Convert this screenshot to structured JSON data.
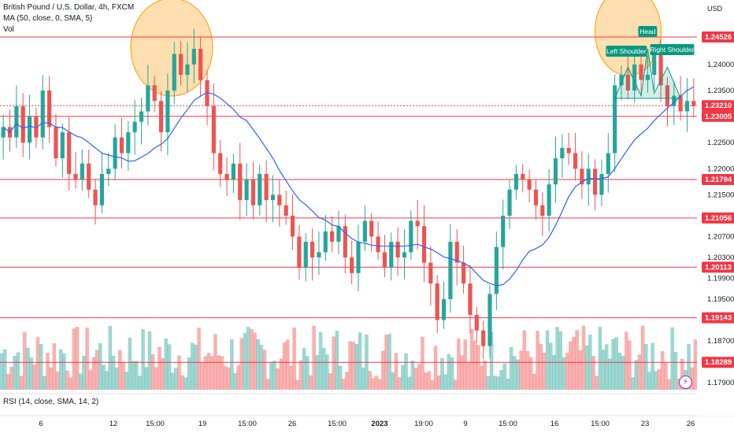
{
  "legend": {
    "symbol": "British Pound / U.S. Dollar, 4h, FXCM",
    "ma": "MA (50, close, 0, SMA, 5)",
    "vol": "Vol",
    "rsi": "RSI (14, close, SMA, 14, 2)"
  },
  "currency": "USD",
  "flash_icon": "lightning-icon",
  "colors": {
    "up": "#26a69a",
    "down": "#ef5350",
    "ma": "#2962ff",
    "level": "#f23645",
    "pattern": "#089981",
    "highlight": "#ffb74d"
  },
  "chart_data": {
    "type": "candlestick",
    "title": "British Pound / U.S. Dollar, 4h, FXCM",
    "ylabel": "USD",
    "ylim": [
      1.179,
      1.2506
    ],
    "y_ticks": [
      "1.24000",
      "1.23500",
      "1.22500",
      "1.22000",
      "1.21500",
      "1.20700",
      "1.20300",
      "1.19900",
      "1.19500",
      "1.18700",
      "1.17900"
    ],
    "x_ticks": [
      "6",
      "12",
      "15:00",
      "19",
      "15:00",
      "26",
      "15:00",
      "2023",
      "19:00",
      "9",
      "15:00",
      "16",
      "15:00",
      "23",
      "26"
    ],
    "horizontal_levels": [
      1.24526,
      1.23005,
      1.21794,
      1.21056,
      1.20113,
      1.19143,
      1.18289
    ],
    "last_price": 1.2321,
    "price_labels": [
      "1.24526",
      "1.23210",
      "1.23005",
      "1.21794",
      "1.21056",
      "1.20113",
      "1.19143",
      "1.18289"
    ],
    "closes": [
      1.228,
      1.226,
      1.232,
      1.225,
      1.23,
      1.226,
      1.235,
      1.228,
      1.222,
      1.227,
      1.219,
      1.218,
      1.221,
      1.216,
      1.213,
      1.219,
      1.22,
      1.226,
      1.223,
      1.227,
      1.229,
      1.231,
      1.236,
      1.233,
      1.227,
      1.235,
      1.242,
      1.238,
      1.24,
      1.243,
      1.237,
      1.232,
      1.223,
      1.219,
      1.218,
      1.221,
      1.214,
      1.218,
      1.213,
      1.219,
      1.214,
      1.215,
      1.213,
      1.211,
      1.207,
      1.201,
      1.206,
      1.203,
      1.204,
      1.208,
      1.206,
      1.209,
      1.203,
      1.2,
      1.206,
      1.21,
      1.207,
      1.204,
      1.201,
      1.206,
      1.203,
      1.204,
      1.21,
      1.209,
      1.202,
      1.198,
      1.191,
      1.195,
      1.206,
      1.202,
      1.198,
      1.192,
      1.189,
      1.186,
      1.196,
      1.205,
      1.211,
      1.216,
      1.219,
      1.218,
      1.216,
      1.213,
      1.211,
      1.217,
      1.222,
      1.224,
      1.223,
      1.22,
      1.217,
      1.22,
      1.215,
      1.219,
      1.223,
      1.236,
      1.238,
      1.235,
      1.24,
      1.237,
      1.238,
      1.242,
      1.236,
      1.232,
      1.234,
      1.231,
      1.233,
      1.232
    ]
  }
}
